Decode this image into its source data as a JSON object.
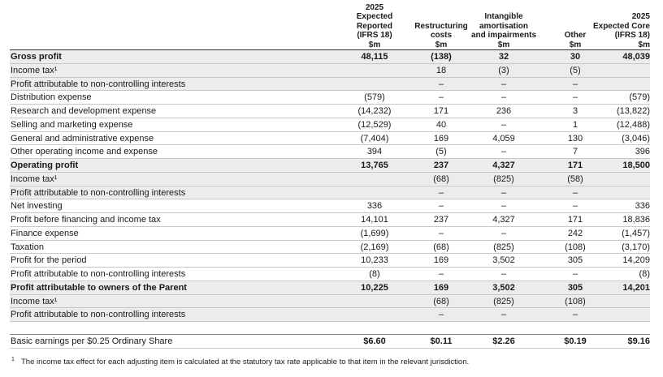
{
  "table": {
    "headers": [
      [
        "2025",
        "Expected",
        "Reported",
        "(IFRS 18)",
        "$m"
      ],
      [
        "Restructuring",
        "costs",
        "$m"
      ],
      [
        "Intangible",
        "amortisation",
        "and impairments",
        "$m"
      ],
      [
        "Other",
        "$m"
      ],
      [
        "2025",
        "Expected Core",
        "(IFRS 18)",
        "$m"
      ]
    ],
    "rows": [
      {
        "label": "Gross profit",
        "bold": true,
        "shaded": true,
        "cells": [
          "48,115",
          "(138)",
          "32",
          "30",
          "48,039"
        ]
      },
      {
        "label": "Income tax¹",
        "shaded": true,
        "cells": [
          null,
          "18",
          "(3)",
          "(5)",
          null
        ]
      },
      {
        "label": "Profit attributable to non-controlling interests",
        "shaded": true,
        "cells": [
          null,
          "–",
          "–",
          "–",
          null
        ]
      },
      {
        "label": "Distribution expense",
        "cells": [
          "(579)",
          "–",
          "–",
          "–",
          "(579)"
        ]
      },
      {
        "label": "Research and development expense",
        "cells": [
          "(14,232)",
          "171",
          "236",
          "3",
          "(13,822)"
        ]
      },
      {
        "label": "Selling and marketing expense",
        "cells": [
          "(12,529)",
          "40",
          "–",
          "1",
          "(12,488)"
        ]
      },
      {
        "label": "General and administrative expense",
        "cells": [
          "(7,404)",
          "169",
          "4,059",
          "130",
          "(3,046)"
        ]
      },
      {
        "label": "Other operating income and expense",
        "cells": [
          "394",
          "(5)",
          "–",
          "7",
          "396"
        ]
      },
      {
        "label": "Operating profit",
        "bold": true,
        "shaded": true,
        "cells": [
          "13,765",
          "237",
          "4,327",
          "171",
          "18,500"
        ]
      },
      {
        "label": "Income tax¹",
        "shaded": true,
        "cells": [
          null,
          "(68)",
          "(825)",
          "(58)",
          null
        ]
      },
      {
        "label": "Profit attributable to non-controlling interests",
        "shaded": true,
        "cells": [
          null,
          "–",
          "–",
          "–",
          null
        ]
      },
      {
        "label": "Net investing",
        "cells": [
          "336",
          "–",
          "–",
          "–",
          "336"
        ]
      },
      {
        "label": "Profit before financing and income tax",
        "cells": [
          "14,101",
          "237",
          "4,327",
          "171",
          "18,836"
        ]
      },
      {
        "label": "Finance expense",
        "cells": [
          "(1,699)",
          "–",
          "–",
          "242",
          "(1,457)"
        ]
      },
      {
        "label": "Taxation",
        "cells": [
          "(2,169)",
          "(68)",
          "(825)",
          "(108)",
          "(3,170)"
        ]
      },
      {
        "label": "Profit for the period",
        "cells": [
          "10,233",
          "169",
          "3,502",
          "305",
          "14,209"
        ]
      },
      {
        "label": "Profit attributable to non-controlling interests",
        "cells": [
          "(8)",
          "–",
          "–",
          "–",
          "(8)"
        ]
      },
      {
        "label": "Profit attributable to owners of the Parent",
        "bold": true,
        "shaded": true,
        "cells": [
          "10,225",
          "169",
          "3,502",
          "305",
          "14,201"
        ]
      },
      {
        "label": "Income tax¹",
        "shaded": true,
        "cells": [
          null,
          "(68)",
          "(825)",
          "(108)",
          null
        ]
      },
      {
        "label": "Profit attributable to non-controlling interests",
        "shaded": true,
        "cells": [
          null,
          "–",
          "–",
          "–",
          null
        ]
      }
    ],
    "eps": {
      "label": "Basic earnings per $0.25 Ordinary Share",
      "cells": [
        "$6.60",
        "$0.11",
        "$2.26",
        "$0.19",
        "$9.16"
      ]
    },
    "footnote": {
      "marker": "1",
      "text": "The income tax effect for each adjusting item is calculated at the statutory tax rate applicable to that item in the relevant jurisdiction."
    }
  }
}
